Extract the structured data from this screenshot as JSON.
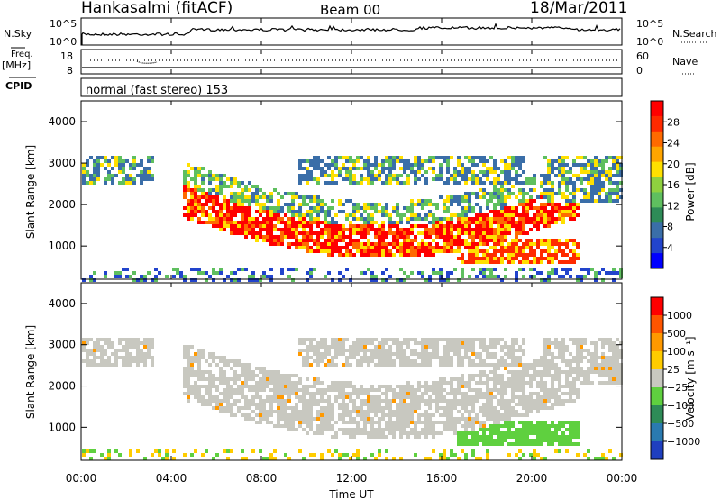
{
  "header": {
    "station": "Hankasalmi (fitACF)",
    "beam": "Beam 00",
    "date": "18/Mar/2011"
  },
  "noise_panel": {
    "left_label": "N.Sky",
    "right_label": "N.Search",
    "left_ticks": [
      "10^5",
      "10^0"
    ],
    "right_ticks": [
      "10^5",
      "10^0"
    ]
  },
  "freq_panel": {
    "label_1": "Freq.",
    "label_2": "[MHz]",
    "left_ticks": [
      "18",
      "8"
    ],
    "right_ticks": [
      "60",
      "0"
    ],
    "right_label": "Nave"
  },
  "cpid_panel": {
    "label": "CPID",
    "text": "normal (fast stereo) 153"
  },
  "colors": {
    "grey_scatter": "#c8c8c0",
    "power_scale": [
      "#0000ff",
      "#2244cc",
      "#3a6ea8",
      "#2e8b57",
      "#5fbf5f",
      "#8fd13f",
      "#ffe000",
      "#ffa500",
      "#ff6a00",
      "#ff2a00",
      "#ff0000"
    ],
    "velocity_scale": [
      "#1f3fbf",
      "#2a7ab0",
      "#2e8b57",
      "#5fd03f",
      "#c8c8c0",
      "#ffcc00",
      "#ff9900",
      "#ff5500",
      "#ff0000"
    ]
  },
  "chart_data": [
    {
      "type": "heatmap",
      "name": "power",
      "ylabel": "Slant Range [km]",
      "colorbar_label": "Power [dB]",
      "colorbar_ticks": [
        "28",
        "24",
        "20",
        "16",
        "12",
        "8",
        "4"
      ],
      "x_range": [
        0,
        24
      ],
      "ylim": [
        200,
        4500
      ],
      "yticks": [
        "4000",
        "3000",
        "2000",
        "1000"
      ],
      "ytick_values": [
        4000,
        3000,
        2000,
        1000
      ]
    },
    {
      "type": "heatmap",
      "name": "velocity",
      "ylabel": "Slant Range [km]",
      "colorbar_label": "Velocity [m s⁻¹]",
      "colorbar_ticks": [
        "1000",
        "500",
        "100",
        "25",
        "−25",
        "−100",
        "−500",
        "−1000"
      ],
      "x_range": [
        0,
        24
      ],
      "ylim": [
        200,
        4500
      ],
      "yticks": [
        "4000",
        "3000",
        "2000",
        "1000"
      ],
      "ytick_values": [
        4000,
        3000,
        2000,
        1000
      ]
    }
  ],
  "x_axis": {
    "label": "Time UT",
    "ticks": [
      "00:00",
      "04:00",
      "08:00",
      "12:00",
      "16:00",
      "20:00",
      "00:00"
    ],
    "tick_hours": [
      0,
      4,
      8,
      12,
      16,
      20,
      24
    ]
  }
}
